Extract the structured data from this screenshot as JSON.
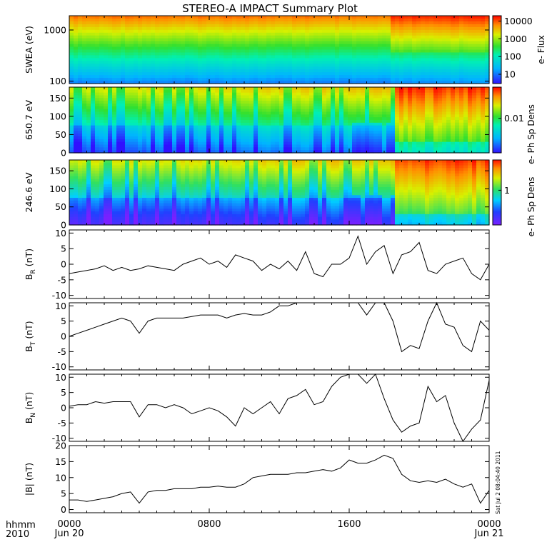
{
  "title": "STEREO-A IMPACT Summary Plot",
  "time_axis": {
    "corner_top": "hhmm",
    "corner_bottom": "2010",
    "ticks": [
      {
        "hour": 0,
        "label": "0000",
        "date": "Jun 20"
      },
      {
        "hour": 8,
        "label": "0800",
        "date": ""
      },
      {
        "hour": 16,
        "label": "1600",
        "date": ""
      },
      {
        "hour": 24,
        "label": "0000",
        "date": "Jun 21"
      }
    ]
  },
  "timestamp": "Sat Jul  2 08:04:40 2011",
  "colors": {
    "line": "#000000",
    "background": "#ffffff"
  },
  "chart_data": [
    {
      "type": "heatmap",
      "name": "swea",
      "ylabel": "SWEA (eV)",
      "yscale": "log",
      "ylim": [
        90,
        1900
      ],
      "yticks": [
        {
          "v": 100,
          "label": "100"
        },
        {
          "v": 1000,
          "label": "1000"
        }
      ],
      "colorbar": {
        "label": "e- Flux",
        "scale": "log",
        "range": [
          3,
          20000
        ],
        "ticks": [
          {
            "v": 10,
            "label": "10"
          },
          {
            "v": 100,
            "label": "100"
          },
          {
            "v": 1000,
            "label": "1000"
          },
          {
            "v": 10000,
            "label": "10000"
          }
        ]
      }
    },
    {
      "type": "heatmap",
      "name": "pad650",
      "ylabel": "650.7 eV",
      "ylim": [
        0,
        180
      ],
      "yticks": [
        {
          "v": 0,
          "label": "0"
        },
        {
          "v": 50,
          "label": "50"
        },
        {
          "v": 100,
          "label": "100"
        },
        {
          "v": 150,
          "label": "150"
        }
      ],
      "colorbar": {
        "label": "e- Ph Sp Dens",
        "scale": "log",
        "range": [
          0.0025,
          0.035
        ],
        "ticks": [
          {
            "v": 0.01,
            "label": "0.01"
          }
        ]
      }
    },
    {
      "type": "heatmap",
      "name": "pad246",
      "ylabel": "246.6 eV",
      "ylim": [
        0,
        180
      ],
      "yticks": [
        {
          "v": 0,
          "label": "0"
        },
        {
          "v": 50,
          "label": "50"
        },
        {
          "v": 100,
          "label": "100"
        },
        {
          "v": 150,
          "label": "150"
        }
      ],
      "colorbar": {
        "label": "e- Ph Sp Dens",
        "scale": "log",
        "range": [
          0.35,
          2.5
        ],
        "ticks": [
          {
            "v": 1,
            "label": "1"
          }
        ]
      }
    },
    {
      "type": "line",
      "name": "br",
      "ylabel": "B",
      "ysub": "R",
      "yunit": "(nT)",
      "ylim": [
        -11,
        11
      ],
      "yticks": [
        {
          "v": -10,
          "label": "-10"
        },
        {
          "v": -5,
          "label": "-5"
        },
        {
          "v": 0,
          "label": "0"
        },
        {
          "v": 5,
          "label": "5"
        },
        {
          "v": 10,
          "label": "10"
        }
      ],
      "x": [
        0,
        0.5,
        1,
        1.5,
        2,
        2.5,
        3,
        3.5,
        4,
        4.5,
        5,
        5.5,
        6,
        6.5,
        7,
        7.5,
        8,
        8.5,
        9,
        9.5,
        10,
        10.5,
        11,
        11.5,
        12,
        12.5,
        13,
        13.5,
        14,
        14.5,
        15,
        15.5,
        16,
        16.5,
        17,
        17.5,
        18,
        18.5,
        19,
        19.5,
        20,
        20.5,
        21,
        21.5,
        22,
        22.5,
        23,
        23.5,
        24
      ],
      "values": [
        -3,
        -2.5,
        -2,
        -1.5,
        -0.5,
        -2,
        -1,
        -2,
        -1.5,
        -0.5,
        -1,
        -1.5,
        -2,
        0,
        1,
        2,
        0,
        1,
        -1,
        3,
        2,
        1,
        -2,
        0,
        -1.5,
        1,
        -2,
        4,
        -3,
        -4,
        0,
        0,
        2,
        9,
        0,
        4,
        6,
        -3,
        3,
        4,
        7,
        -2,
        -3,
        0,
        1,
        2,
        -3,
        -5,
        0
      ]
    },
    {
      "type": "line",
      "name": "bt",
      "ylabel": "B",
      "ysub": "T",
      "yunit": "(nT)",
      "ylim": [
        -11,
        11
      ],
      "yticks": [
        {
          "v": -10,
          "label": "-10"
        },
        {
          "v": -5,
          "label": "-5"
        },
        {
          "v": 0,
          "label": "0"
        },
        {
          "v": 5,
          "label": "5"
        },
        {
          "v": 10,
          "label": "10"
        }
      ],
      "x": [
        0,
        0.5,
        1,
        1.5,
        2,
        2.5,
        3,
        3.5,
        4,
        4.5,
        5,
        5.5,
        6,
        6.5,
        7,
        7.5,
        8,
        8.5,
        9,
        9.5,
        10,
        10.5,
        11,
        11.5,
        12,
        12.5,
        13,
        13.5,
        14,
        14.5,
        15,
        15.5,
        16,
        16.5,
        17,
        17.5,
        18,
        18.5,
        19,
        19.5,
        20,
        20.5,
        21,
        21.5,
        22,
        22.5,
        23,
        23.5,
        24
      ],
      "values": [
        0,
        1,
        2,
        3,
        4,
        5,
        6,
        5,
        1,
        5,
        6,
        6,
        6,
        6,
        6.5,
        7,
        7,
        7,
        6,
        7,
        7.5,
        7,
        7,
        8,
        10,
        10,
        11,
        11,
        11,
        11,
        11,
        11,
        11,
        11,
        7,
        11,
        11,
        5,
        -5,
        -3,
        -4,
        5,
        11,
        4,
        3,
        -3,
        -5,
        5,
        2
      ]
    },
    {
      "type": "line",
      "name": "bn",
      "ylabel": "B",
      "ysub": "N",
      "yunit": "(nT)",
      "ylim": [
        -11,
        11
      ],
      "yticks": [
        {
          "v": -10,
          "label": "-10"
        },
        {
          "v": -5,
          "label": "-5"
        },
        {
          "v": 0,
          "label": "0"
        },
        {
          "v": 5,
          "label": "5"
        },
        {
          "v": 10,
          "label": "10"
        }
      ],
      "x": [
        0,
        0.5,
        1,
        1.5,
        2,
        2.5,
        3,
        3.5,
        4,
        4.5,
        5,
        5.5,
        6,
        6.5,
        7,
        7.5,
        8,
        8.5,
        9,
        9.5,
        10,
        10.5,
        11,
        11.5,
        12,
        12.5,
        13,
        13.5,
        14,
        14.5,
        15,
        15.5,
        16,
        16.5,
        17,
        17.5,
        18,
        18.5,
        19,
        19.5,
        20,
        20.5,
        21,
        21.5,
        22,
        22.5,
        23,
        23.5,
        24
      ],
      "values": [
        0.5,
        1,
        1,
        2,
        1.5,
        2,
        2,
        2,
        -3,
        1,
        1,
        0,
        1,
        0,
        -2,
        -1,
        0,
        -1,
        -3,
        -6,
        0,
        -2,
        0,
        2,
        -2,
        3,
        4,
        6,
        1,
        2,
        7,
        10,
        11,
        11,
        8,
        11,
        3,
        -4,
        -8,
        -6,
        -5,
        7,
        2,
        4,
        -5,
        -11,
        -7,
        -4,
        9
      ]
    },
    {
      "type": "line",
      "name": "bmag",
      "ylabel": "|B|",
      "yunit": "(nT)",
      "ylim": [
        -1,
        20
      ],
      "yticks": [
        {
          "v": 0,
          "label": "0"
        },
        {
          "v": 5,
          "label": "5"
        },
        {
          "v": 10,
          "label": "10"
        },
        {
          "v": 15,
          "label": "15"
        },
        {
          "v": 20,
          "label": "20"
        }
      ],
      "x": [
        0,
        0.5,
        1,
        1.5,
        2,
        2.5,
        3,
        3.5,
        4,
        4.5,
        5,
        5.5,
        6,
        6.5,
        7,
        7.5,
        8,
        8.5,
        9,
        9.5,
        10,
        10.5,
        11,
        11.5,
        12,
        12.5,
        13,
        13.5,
        14,
        14.5,
        15,
        15.5,
        16,
        16.5,
        17,
        17.5,
        18,
        18.5,
        19,
        19.5,
        20,
        20.5,
        21,
        21.5,
        22,
        22.5,
        23,
        23.5,
        24
      ],
      "values": [
        3,
        3,
        2.5,
        3,
        3.5,
        4,
        5,
        5.5,
        2,
        5.5,
        6,
        6,
        6.5,
        6.5,
        6.5,
        7,
        7,
        7.3,
        7,
        7,
        8,
        10,
        10.5,
        11,
        11,
        11,
        11.5,
        11.5,
        12,
        12.5,
        12,
        13,
        15.5,
        14.5,
        14.5,
        15.5,
        17,
        16,
        11,
        9,
        8.5,
        9,
        8.5,
        9.5,
        8,
        7,
        8,
        2,
        6
      ]
    }
  ]
}
